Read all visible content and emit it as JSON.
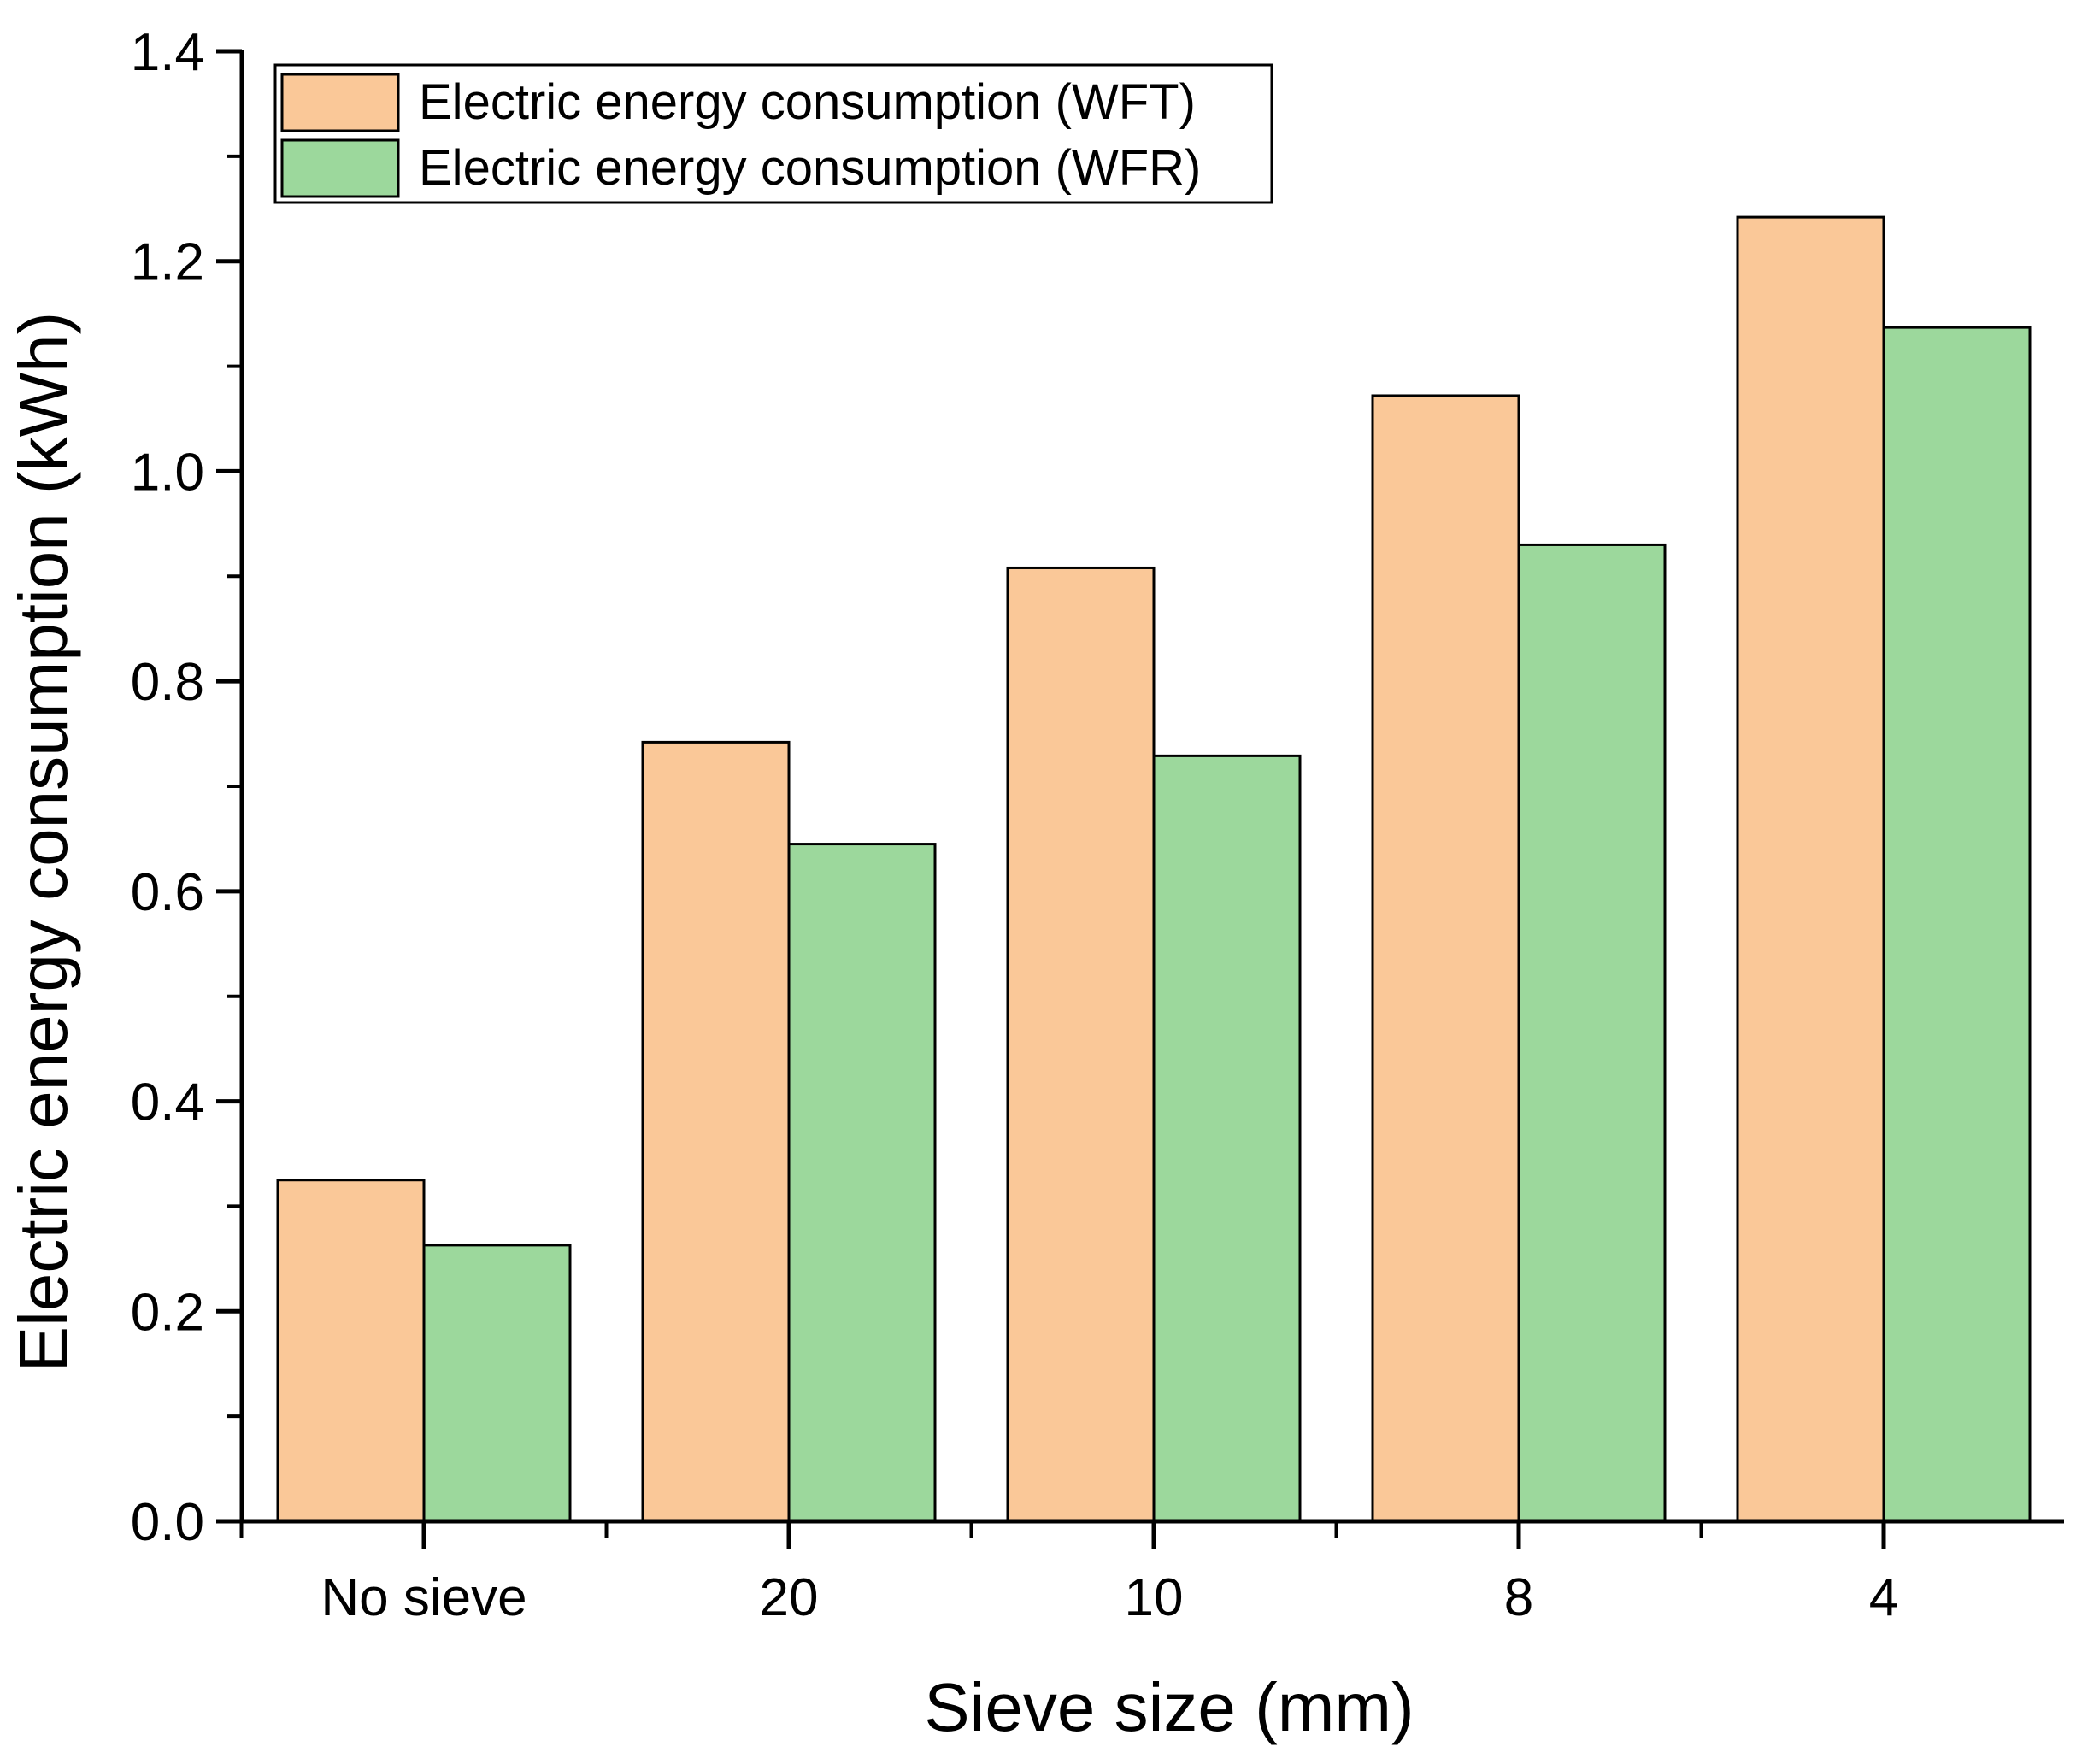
{
  "chart_data": {
    "type": "bar",
    "title": "",
    "xlabel": "Sieve size (mm)",
    "ylabel": "Electric energy consumption (kWh)",
    "categories": [
      "No sieve",
      "20",
      "10",
      "8",
      "4"
    ],
    "ylim": [
      0,
      1.4
    ],
    "yticks": [
      "0.0",
      "0.2",
      "0.4",
      "0.6",
      "0.8",
      "1.0",
      "1.2",
      "1.4"
    ],
    "legend_position": "top-left",
    "grid": false,
    "series": [
      {
        "name": "Electric energy consumption (WFT)",
        "color": "#FAC898",
        "values": [
          0.325,
          0.742,
          0.908,
          1.072,
          1.242
        ]
      },
      {
        "name": "Electric energy consumption (WFR)",
        "color": "#9CD89C",
        "values": [
          0.263,
          0.645,
          0.729,
          0.93,
          1.137
        ]
      }
    ]
  }
}
